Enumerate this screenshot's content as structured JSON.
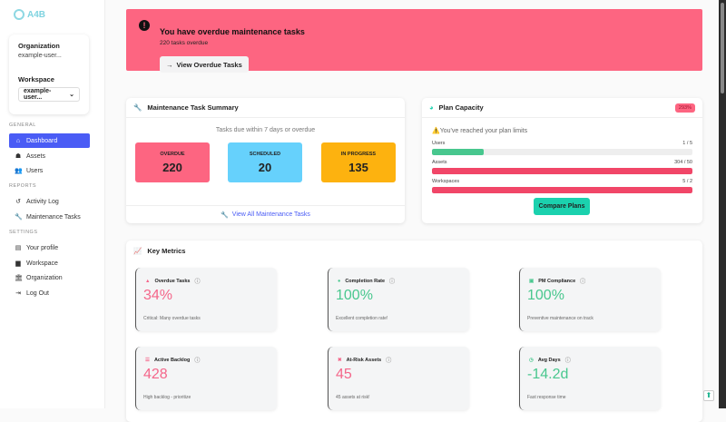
{
  "brand": "A4B",
  "sidebar": {
    "org_label": "Organization",
    "org_value": "example-user...",
    "ws_label": "Workspace",
    "ws_value": "example-user...",
    "sections": {
      "general": "GENERAL",
      "reports": "REPORTS",
      "settings": "SETTINGS"
    },
    "items": [
      {
        "label": "Dashboard",
        "icon": "home-icon"
      },
      {
        "label": "Assets",
        "icon": "sitemap-icon"
      },
      {
        "label": "Users",
        "icon": "users-icon"
      },
      {
        "label": "Activity Log",
        "icon": "history-icon"
      },
      {
        "label": "Maintenance Tasks",
        "icon": "wrench-icon"
      },
      {
        "label": "Your profile",
        "icon": "id-card-icon"
      },
      {
        "label": "Workspace",
        "icon": "building-icon"
      },
      {
        "label": "Organization",
        "icon": "landmark-icon"
      },
      {
        "label": "Log Out",
        "icon": "logout-icon"
      }
    ]
  },
  "banner": {
    "title": "You have overdue maintenance tasks",
    "subtitle": "220 tasks overdue",
    "button": "View Overdue Tasks",
    "color": "#fd6581"
  },
  "summary": {
    "title": "Maintenance Task Summary",
    "subtitle": "Tasks due within 7 days or overdue",
    "boxes": [
      {
        "label": "OVERDUE",
        "value": "220",
        "color": "#fd6581"
      },
      {
        "label": "SCHEDULED",
        "value": "20",
        "color": "#66d1fc"
      },
      {
        "label": "IN PROGRESS",
        "value": "135",
        "color": "#fdb20f"
      }
    ],
    "link": "View All Maintenance Tasks"
  },
  "plan": {
    "title": "Plan Capacity",
    "badge": "293%",
    "warning": "You've reached your plan limits",
    "rows": [
      {
        "label": "Users",
        "value": "1 / 5",
        "pct": 20,
        "color": "#48c78e"
      },
      {
        "label": "Assets",
        "value": "304 / 50",
        "pct": 100,
        "color": "#f14668"
      },
      {
        "label": "Workspaces",
        "value": "5 / 2",
        "pct": 100,
        "color": "#f14668"
      }
    ],
    "button": "Compare Plans"
  },
  "metrics": {
    "title": "Key Metrics",
    "items": [
      {
        "label": "Overdue Tasks",
        "value": "34%",
        "desc": "Critical: Many overdue tasks",
        "color": "#f4668a",
        "icon": "warning-icon"
      },
      {
        "label": "Completion Rate",
        "value": "100%",
        "desc": "Excellent completion rate!",
        "color": "#48c78e",
        "icon": "check-circle-icon"
      },
      {
        "label": "PM Compliance",
        "value": "100%",
        "desc": "Preventive maintenance on track",
        "color": "#48c78e",
        "icon": "clipboard-check-icon"
      },
      {
        "label": "Active Backlog",
        "value": "428",
        "desc": "High backlog - prioritize",
        "color": "#f4668a",
        "icon": "list-icon"
      },
      {
        "label": "At-Risk Assets",
        "value": "45",
        "desc": "45 assets at risk!",
        "color": "#f4668a",
        "icon": "tools-icon"
      },
      {
        "label": "Avg Days",
        "value": "-14.2d",
        "desc": "Fast response time",
        "color": "#48c78e",
        "icon": "clock-icon"
      }
    ]
  }
}
